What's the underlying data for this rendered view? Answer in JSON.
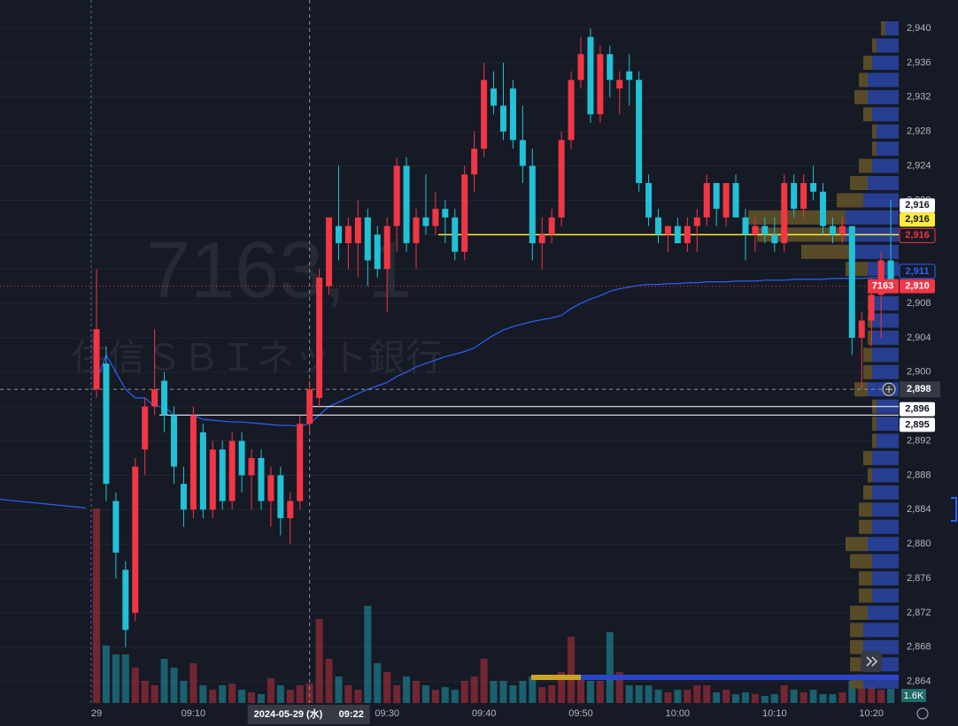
{
  "chart_data": {
    "type": "candlestick",
    "watermark_symbol": "7163, 1",
    "watermark_name": "住信ＳＢＩネット銀行",
    "categories": [
      "29",
      null,
      null,
      null,
      null,
      null,
      null,
      null,
      null,
      null,
      "09:10",
      null,
      null,
      null,
      null,
      null,
      null,
      null,
      null,
      null,
      null,
      null,
      null,
      null,
      null,
      null,
      null,
      null,
      null,
      null,
      "09:30",
      null,
      null,
      null,
      null,
      null,
      null,
      null,
      null,
      null,
      "09:40",
      null,
      null,
      null,
      null,
      null,
      null,
      null,
      null,
      null,
      "09:50",
      null,
      null,
      null,
      null,
      null,
      null,
      null,
      null,
      null,
      "10:00",
      null,
      null,
      null,
      null,
      null,
      null,
      null,
      null,
      null,
      "10:10",
      null,
      null,
      null,
      null,
      null,
      null,
      null,
      null,
      null,
      "10:20",
      null,
      null
    ],
    "open": [
      2898,
      2901,
      2885,
      2877,
      2872,
      2891,
      2896,
      2899,
      2895,
      2887,
      2884,
      2893,
      2884,
      2891,
      2885,
      2892,
      2888,
      2890,
      2885,
      2888,
      2883,
      2885,
      2894,
      2897,
      2910,
      2917,
      2915,
      2915,
      2918,
      2916,
      2912,
      2917,
      2924,
      2915,
      2918,
      2917,
      2919,
      2918,
      2914,
      2923,
      2926,
      2933,
      2931,
      2933,
      2927,
      2924,
      2915,
      2916,
      2918,
      2927,
      2934,
      2939,
      2930,
      2937,
      2933,
      2935,
      2934,
      2922,
      2918,
      2916,
      2917,
      2915,
      2917,
      2918,
      2922,
      2918,
      2922,
      2918,
      2916,
      2917,
      2916,
      2915,
      2922,
      2919,
      2922,
      2921,
      2917,
      2916,
      2917,
      2904,
      2906,
      2909,
      2913
    ],
    "high": [
      2912,
      2903,
      2886,
      2878,
      2890,
      2897,
      2905,
      2900,
      2896,
      2889,
      2896,
      2894,
      2892,
      2892,
      2893,
      2893,
      2891,
      2891,
      2889,
      2889,
      2886,
      2895,
      2899,
      2912,
      2918,
      2924,
      2918,
      2920,
      2919,
      2917,
      2918,
      2925,
      2925,
      2919,
      2923,
      2921,
      2920,
      2919,
      2924,
      2928,
      2936,
      2935,
      2936,
      2934,
      2931,
      2926,
      2918,
      2919,
      2928,
      2935,
      2939,
      2940,
      2938,
      2938,
      2935,
      2937,
      2935,
      2923,
      2919,
      2917,
      2918,
      2918,
      2919,
      2923,
      2922,
      2922,
      2923,
      2919,
      2918,
      2918,
      2918,
      2923,
      2923,
      2923,
      2924,
      2922,
      2918,
      2918,
      2917,
      2907,
      2911,
      2914,
      2920
    ],
    "low": [
      2897,
      2885,
      2876,
      2868,
      2871,
      2888,
      2895,
      2893,
      2887,
      2882,
      2883,
      2883,
      2883,
      2884,
      2884,
      2886,
      2884,
      2884,
      2882,
      2881,
      2880,
      2884,
      2893,
      2896,
      2909,
      2913,
      2912,
      2911,
      2910,
      2911,
      2907,
      2914,
      2914,
      2912,
      2916,
      2916,
      2915,
      2913,
      2913,
      2921,
      2925,
      2930,
      2927,
      2926,
      2922,
      2913,
      2912,
      2915,
      2917,
      2926,
      2933,
      2929,
      2929,
      2932,
      2930,
      2931,
      2921,
      2917,
      2915,
      2914,
      2915,
      2914,
      2914,
      2917,
      2917,
      2917,
      2918,
      2913,
      2914,
      2915,
      2914,
      2914,
      2918,
      2918,
      2920,
      2916,
      2915,
      2915,
      2902,
      2898,
      2903,
      2904,
      2910
    ],
    "close": [
      2905,
      2887,
      2879,
      2870,
      2889,
      2896,
      2898,
      2895,
      2889,
      2884,
      2895,
      2884,
      2891,
      2885,
      2892,
      2888,
      2890,
      2885,
      2888,
      2883,
      2885,
      2894,
      2898,
      2911,
      2918,
      2915,
      2917,
      2918,
      2913,
      2912,
      2917,
      2924,
      2915,
      2918,
      2917,
      2919,
      2918,
      2914,
      2923,
      2926,
      2934,
      2931,
      2928,
      2927,
      2924,
      2915,
      2916,
      2918,
      2927,
      2934,
      2937,
      2930,
      2937,
      2934,
      2934,
      2934,
      2922,
      2918,
      2916,
      2917,
      2915,
      2917,
      2918,
      2922,
      2919,
      2922,
      2918,
      2916,
      2917,
      2916,
      2915,
      2922,
      2919,
      2922,
      2921,
      2917,
      2916,
      2917,
      2904,
      2906,
      2909,
      2913,
      2910
    ],
    "volume": [
      22000,
      6500,
      5500,
      5500,
      4000,
      2500,
      2000,
      5000,
      4000,
      2500,
      4500,
      2000,
      1500,
      2000,
      2200,
      1500,
      1200,
      1000,
      2800,
      2000,
      1500,
      2000,
      2200,
      9500,
      5000,
      3000,
      2000,
      1500,
      11000,
      4500,
      3500,
      2000,
      3000,
      2500,
      2000,
      1500,
      1800,
      1500,
      2500,
      3000,
      5000,
      2500,
      2500,
      2000,
      2500,
      3000,
      1800,
      2000,
      3500,
      7500,
      3000,
      2500,
      2500,
      8000,
      3500,
      2000,
      2000,
      2000,
      1500,
      1200,
      1500,
      1500,
      2000,
      2000,
      1200,
      1500,
      1000,
      1200,
      1000,
      800,
      1000,
      2000,
      1500,
      1200,
      1500,
      1000,
      1000,
      1200,
      2500,
      2000,
      2000,
      1500,
      1600
    ],
    "vwap": [
      2899,
      2902,
      2900,
      2898,
      2897,
      2897,
      2896,
      2896,
      2895,
      2895,
      2895,
      2894.5,
      2894.4,
      2894.3,
      2894.2,
      2894.2,
      2894.1,
      2894,
      2893.9,
      2893.8,
      2893.8,
      2893.7,
      2894,
      2895,
      2896,
      2896.5,
      2897,
      2897.5,
      2898,
      2898.4,
      2898.8,
      2899.5,
      2900,
      2900.6,
      2901,
      2901.4,
      2901.8,
      2902.1,
      2902.4,
      2902.8,
      2903.6,
      2904.3,
      2904.9,
      2905.3,
      2905.6,
      2905.9,
      2906.1,
      2906.3,
      2906.6,
      2907.4,
      2908,
      2908.5,
      2908.9,
      2909.4,
      2909.7,
      2909.9,
      2910.1,
      2910.2,
      2910.2,
      2910.3,
      2910.3,
      2910.4,
      2910.4,
      2910.5,
      2910.5,
      2910.5,
      2910.6,
      2910.6,
      2910.6,
      2910.7,
      2910.7,
      2910.7,
      2910.8,
      2910.8,
      2910.8,
      2910.8,
      2910.9,
      2910.9,
      2910.9,
      2910.9,
      2911,
      2911,
      2911
    ],
    "prev_vwap": [
      2885.2,
      2884.2
    ],
    "up_color": "#f23645",
    "down_color": "#22c1d6",
    "vwap_color": "#2962ff",
    "ylim": [
      2861.5,
      2943.3
    ],
    "vlim": [
      0,
      30000
    ],
    "yticks": [
      {
        "value": 2864,
        "label": "2,864"
      },
      {
        "value": 2868,
        "label": "2,868"
      },
      {
        "value": 2872,
        "label": "2,872"
      },
      {
        "value": 2876,
        "label": "2,876"
      },
      {
        "value": 2880,
        "label": "2,880"
      },
      {
        "value": 2884,
        "label": "2,884"
      },
      {
        "value": 2888,
        "label": "2,888"
      },
      {
        "value": 2892,
        "label": "2,892"
      },
      {
        "value": 2896,
        "label": "2,896"
      },
      {
        "value": 2900,
        "label": "2,900"
      },
      {
        "value": 2904,
        "label": "2,904"
      },
      {
        "value": 2908,
        "label": "2,908"
      },
      {
        "value": 2912,
        "label": "2,912"
      },
      {
        "value": 2916,
        "label": "2,916"
      },
      {
        "value": 2920,
        "label": "2,920"
      },
      {
        "value": 2924,
        "label": "2,924"
      },
      {
        "value": 2928,
        "label": "2,928"
      },
      {
        "value": 2932,
        "label": "2,932"
      },
      {
        "value": 2936,
        "label": "2,936"
      },
      {
        "value": 2940,
        "label": "2,940"
      }
    ],
    "grid": true,
    "volume_profile": {
      "prices": [
        2864,
        2866,
        2868,
        2870,
        2872,
        2874,
        2876,
        2878,
        2880,
        2882,
        2884,
        2886,
        2888,
        2890,
        2892,
        2894,
        2896,
        2898,
        2900,
        2902,
        2904,
        2906,
        2908,
        2910,
        2912,
        2914,
        2916,
        2918,
        2920,
        2922,
        2924,
        2926,
        2928,
        2930,
        2932,
        2934,
        2936,
        2938,
        2940
      ],
      "down": [
        4000,
        4000,
        4000,
        4000,
        3500,
        3000,
        3000,
        3000,
        3500,
        3000,
        3000,
        3000,
        3000,
        3000,
        2500,
        2500,
        2500,
        3500,
        3000,
        3000,
        3000,
        3000,
        3000,
        3000,
        3500,
        5000,
        6000,
        6000,
        4000,
        3500,
        3000,
        2500,
        2500,
        3000,
        3500,
        3500,
        3000,
        2500,
        1500
      ],
      "up": [
        1500,
        1500,
        1500,
        1500,
        2000,
        1500,
        1500,
        2500,
        2500,
        1500,
        1500,
        1000,
        500,
        1000,
        500,
        500,
        500,
        1500,
        1000,
        1000,
        500,
        500,
        500,
        500,
        2500,
        6000,
        10000,
        11000,
        3000,
        2000,
        1500,
        500,
        500,
        1000,
        1500,
        1000,
        1000,
        500,
        500
      ],
      "xlim": [
        0,
        20000
      ],
      "down_color": "#2a45a6",
      "up_color": "#5e5228"
    },
    "price_tags": [
      {
        "value": 2916,
        "label": "2,916",
        "bg": "#ffffff",
        "fg": "#131722"
      },
      {
        "value": 2916,
        "label": "2,916",
        "bg": "#ffeb3b",
        "fg": "#131722"
      },
      {
        "value": 2916,
        "label": "2,916",
        "bg": "#161a25",
        "fg": "#f23645"
      },
      {
        "value": 2911,
        "label": "2,911",
        "bg": "#161a25",
        "fg": "#2962ff"
      },
      {
        "value": 2910,
        "label": "2,910",
        "bg": "#f23645",
        "fg": "#ffffff"
      },
      {
        "value": 2896,
        "label": "2,896",
        "bg": "#ffffff",
        "fg": "#131722"
      },
      {
        "value": 2895,
        "label": "2,895",
        "bg": "#ffffff",
        "fg": "#131722"
      }
    ],
    "last_badge": "7163",
    "crosshair": {
      "date": "2024-05-29 (水)",
      "time": "09:22",
      "index": 22,
      "price": {
        "value": 2898,
        "label": "2,898"
      }
    },
    "volume_label": {
      "value": 1600,
      "label": "1.6K"
    }
  }
}
